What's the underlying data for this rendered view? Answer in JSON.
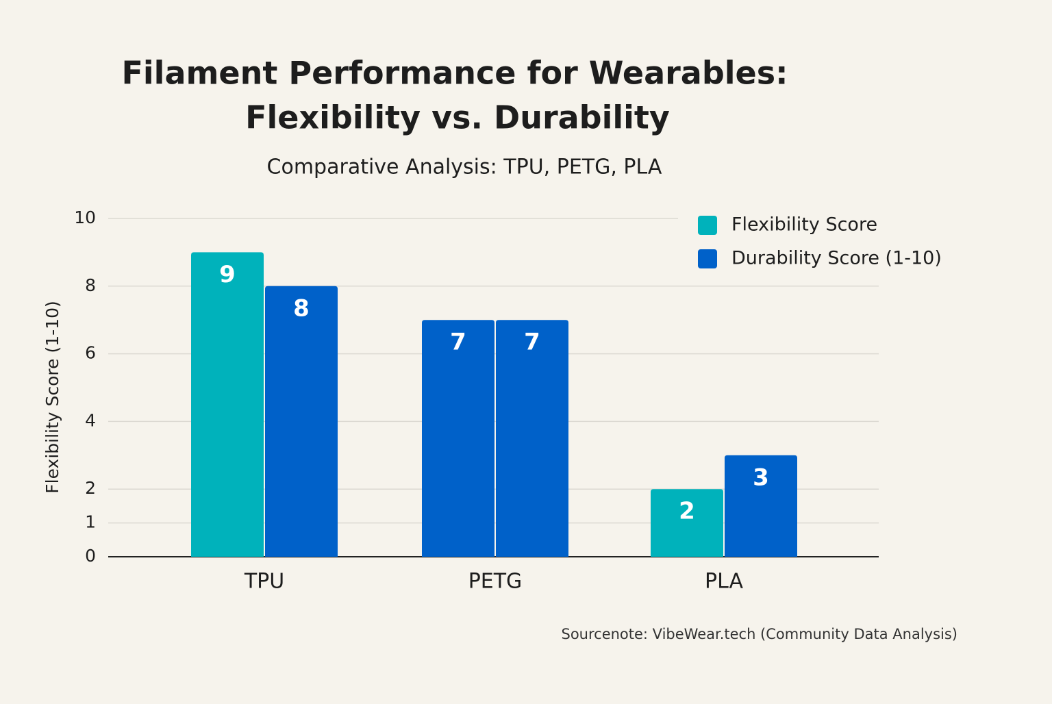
{
  "chart_data": {
    "type": "bar",
    "title": [
      "Filament Performance for Wearables:",
      "Flexibility vs. Durability"
    ],
    "subtitle": "Comparative Analysis: TPU, PETG, PLA",
    "y_label": "Flexibility Score (1-10)",
    "source": "Sourcenote: VibeWear.tech (Community Data Analysis)",
    "categories": [
      "TPU",
      "PETG",
      "PLA"
    ],
    "series": [
      {
        "name": "Flexibility Score",
        "color": "#00b2bb",
        "colors": [
          "#00b2bb",
          "#0061c9",
          "#00b2bb"
        ],
        "values": [
          9,
          7,
          2
        ]
      },
      {
        "name": "Durability Score (1-10)",
        "color": "#0061c9",
        "colors": [
          "#0061c9",
          "#0061c9",
          "#0061c9"
        ],
        "values": [
          8,
          7,
          3
        ]
      }
    ],
    "ylim": [
      0,
      10
    ],
    "yticks": [
      0,
      1,
      2,
      4,
      6,
      8,
      10
    ],
    "grid": true,
    "legend": "top-right"
  }
}
